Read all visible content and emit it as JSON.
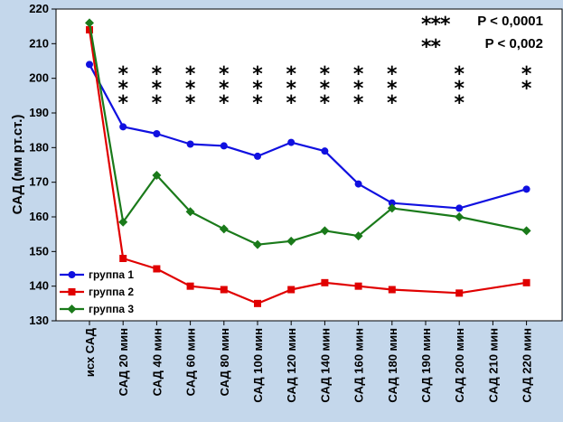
{
  "chart_data": {
    "type": "line",
    "title": "",
    "xlabel": "",
    "ylabel": "САД (мм рт.ст.)",
    "ylim": [
      130,
      220
    ],
    "yticks": [
      130,
      140,
      150,
      160,
      170,
      180,
      190,
      200,
      210,
      220
    ],
    "grid": false,
    "legend_position": "bottom-left",
    "categories": [
      "исх САД",
      "САД 20 мин",
      "САД 40 мин",
      "САД 60 мин",
      "САД 80 мин",
      "САД 100 мин",
      "САД 120 мин",
      "САД 140 мин",
      "САД 160 мин",
      "САД 180 мин",
      "САД 190 мин",
      "САД 200 мин",
      "САД 210 мин",
      "САД 220 мин"
    ],
    "series": [
      {
        "name": "группа 1",
        "color": "#1010e0",
        "marker": "circle",
        "values": [
          204,
          186,
          184,
          181,
          180.5,
          177.5,
          181.5,
          179,
          169.5,
          164,
          null,
          162.5,
          null,
          168
        ]
      },
      {
        "name": "группа 2",
        "color": "#e00000",
        "marker": "square",
        "values": [
          214,
          148,
          145,
          140,
          139,
          135,
          139,
          141,
          140,
          139,
          null,
          138,
          null,
          141
        ]
      },
      {
        "name": "группа 3",
        "color": "#1a7a1a",
        "marker": "diamond",
        "values": [
          216,
          158.5,
          172,
          161.5,
          156.5,
          152,
          153,
          156,
          154.5,
          162.5,
          null,
          160,
          null,
          156
        ]
      }
    ],
    "significance_marks": [
      "",
      "***",
      "***",
      "***",
      "***",
      "***",
      "***",
      "***",
      "***",
      "***",
      "",
      "***",
      "",
      "**"
    ],
    "significance_legend": [
      {
        "mark": "***",
        "label": "P < 0,0001"
      },
      {
        "mark": "**",
        "label": "P < 0,002"
      }
    ]
  }
}
